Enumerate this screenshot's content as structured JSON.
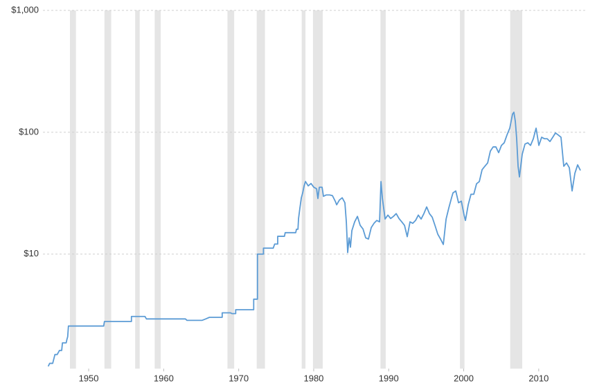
{
  "chart_data": {
    "type": "line",
    "log_scale_y": true,
    "grid": true,
    "xlim": [
      1943.9,
      2016.2
    ],
    "ylim": [
      1.15,
      1000
    ],
    "xticks": [
      1950,
      1960,
      1970,
      1980,
      1990,
      2000,
      2010
    ],
    "yticks": [
      {
        "value": 10,
        "label": "$10"
      },
      {
        "value": 100,
        "label": "$100"
      },
      {
        "value": 1000,
        "label": "$1,000"
      }
    ],
    "band_color": "#e5e5e5",
    "recessions": [
      [
        1947.5,
        1948.3
      ],
      [
        1952.1,
        1953.0
      ],
      [
        1956.2,
        1956.8
      ],
      [
        1958.8,
        1959.6
      ],
      [
        1968.5,
        1969.4
      ],
      [
        1972.4,
        1973.5
      ],
      [
        1978.4,
        1978.9
      ],
      [
        1979.9,
        1981.2
      ],
      [
        1988.9,
        1989.6
      ],
      [
        1999.5,
        2000.1
      ],
      [
        2006.2,
        2007.8
      ]
    ],
    "x": [
      1944.6,
      1944.8,
      1945.2,
      1945.5,
      1945.8,
      1946.1,
      1946.4,
      1946.5,
      1947.0,
      1947.1,
      1947.2,
      1947.3,
      1952.0,
      1952.1,
      1955.7,
      1955.7,
      1957.5,
      1957.7,
      1962.9,
      1963.1,
      1965.1,
      1965.6,
      1966.1,
      1967.8,
      1967.8,
      1968.9,
      1969.1,
      1969.6,
      1969.6,
      1972.0,
      1972.0,
      1972.5,
      1972.5,
      1973.3,
      1973.3,
      1974.6,
      1974.8,
      1975.2,
      1975.2,
      1976.1,
      1976.2,
      1977.6,
      1977.7,
      1977.9,
      1977.98,
      1978.16,
      1978.35,
      1978.53,
      1978.72,
      1978.9,
      1979.27,
      1979.64,
      1980.01,
      1980.38,
      1980.56,
      1980.75,
      1981.12,
      1981.3,
      1981.67,
      1982.13,
      1982.5,
      1982.87,
      1983.06,
      1983.43,
      1983.8,
      1984.16,
      1984.35,
      1984.53,
      1984.72,
      1984.9,
      1985.09,
      1985.46,
      1985.83,
      1986.2,
      1986.57,
      1986.93,
      1987.3,
      1987.67,
      1988.04,
      1988.41,
      1988.78,
      1988.97,
      1989.15,
      1989.52,
      1989.89,
      1990.26,
      1990.63,
      1991.0,
      1991.37,
      1991.74,
      1992.11,
      1992.47,
      1992.84,
      1993.21,
      1993.58,
      1993.95,
      1994.32,
      1994.69,
      1995.06,
      1995.43,
      1995.8,
      1996.17,
      1996.54,
      1996.91,
      1997.28,
      1997.65,
      1998.01,
      1998.38,
      1998.57,
      1998.94,
      1999.31,
      1999.68,
      2000.05,
      2000.23,
      2000.6,
      2000.97,
      2001.34,
      2001.71,
      2002.08,
      2002.45,
      2002.82,
      2003.19,
      2003.55,
      2003.92,
      2004.29,
      2004.66,
      2005.03,
      2005.4,
      2005.77,
      2006.14,
      2006.51,
      2006.69,
      2006.88,
      2007.06,
      2007.25,
      2007.43,
      2007.8,
      2008.17,
      2008.54,
      2008.91,
      2009.28,
      2009.65,
      2010.02,
      2010.39,
      2010.76,
      2011.13,
      2011.5,
      2011.87,
      2012.23,
      2012.6,
      2012.97,
      2013.34,
      2013.71,
      2014.08,
      2014.45,
      2014.82,
      2015.19,
      2015.56
    ],
    "series": [
      {
        "color": "#5b9bd5",
        "values": [
          1.2,
          1.27,
          1.27,
          1.5,
          1.5,
          1.62,
          1.62,
          1.87,
          1.87,
          2.0,
          2.1,
          2.57,
          2.57,
          2.8,
          2.8,
          3.08,
          3.08,
          2.94,
          2.94,
          2.86,
          2.86,
          2.94,
          3.03,
          3.03,
          3.3,
          3.3,
          3.25,
          3.25,
          3.5,
          3.5,
          4.27,
          4.27,
          10,
          10,
          11.2,
          11.2,
          12.1,
          12.1,
          14,
          14,
          15,
          15,
          16,
          16,
          19.6,
          23.9,
          29.0,
          31.8,
          36.3,
          39.4,
          36.3,
          38.0,
          35.4,
          34.4,
          28.6,
          35.4,
          35.4,
          29.8,
          30.6,
          30.6,
          30.2,
          27.2,
          25.4,
          27.8,
          29.0,
          26.4,
          18.4,
          10.3,
          13.6,
          11.4,
          15.6,
          18.4,
          20.4,
          17.2,
          16.1,
          13.6,
          13.3,
          16.5,
          17.9,
          18.9,
          18.4,
          39.4,
          29.0,
          19.4,
          20.9,
          19.6,
          20.4,
          21.5,
          19.6,
          18.4,
          17.2,
          13.9,
          18.4,
          17.9,
          18.9,
          20.9,
          19.4,
          21.5,
          24.4,
          21.5,
          20.1,
          17.2,
          14.6,
          13.3,
          12.0,
          19.4,
          23.9,
          29.0,
          31.8,
          33.0,
          26.4,
          27.2,
          20.9,
          18.9,
          25.4,
          31.0,
          31.0,
          37.8,
          39.4,
          49.3,
          52.6,
          56,
          70,
          75.8,
          75.8,
          68,
          78,
          82,
          95,
          108,
          141,
          146,
          123,
          88.5,
          52.6,
          43,
          66,
          80,
          82,
          78,
          88.5,
          108,
          78,
          91,
          88.5,
          88.5,
          84,
          91,
          98.7,
          95,
          91,
          52.6,
          56,
          51.2,
          33.0,
          46,
          54,
          48.6
        ]
      }
    ]
  }
}
